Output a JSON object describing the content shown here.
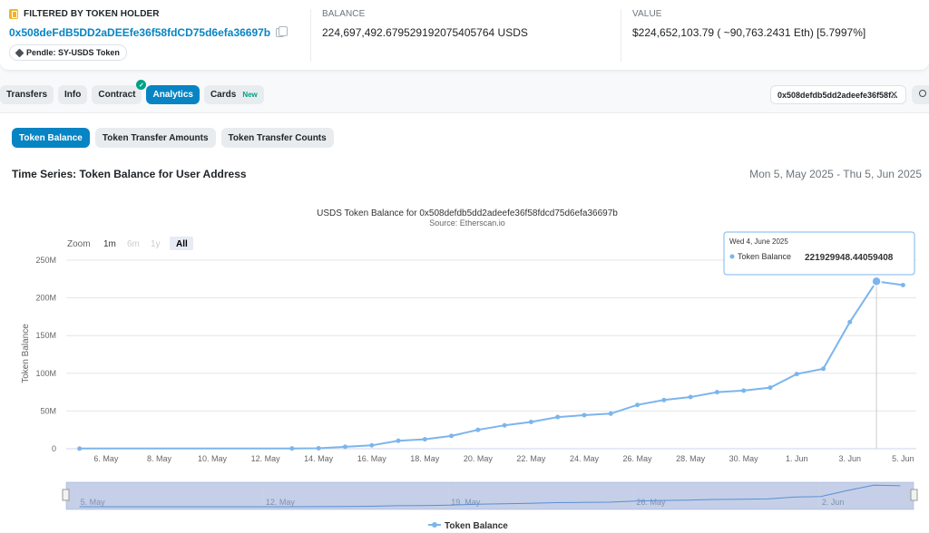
{
  "header": {
    "filter_label": "FILTERED BY TOKEN HOLDER",
    "holder_address": "0x508deFdB5DD2aDEEfe36f58fdCD75d6efa36697b",
    "token_pill": "Pendle: SY-USDS Token",
    "balance_label": "BALANCE",
    "balance_value": "224,697,492.679529192075405764 USDS",
    "value_label": "VALUE",
    "value_value": "$224,652,103.79 ( ~90,763.2431 Eth) [5.7997%]"
  },
  "tabs": [
    {
      "label": "Transfers"
    },
    {
      "label": "Info"
    },
    {
      "label": "Contract"
    },
    {
      "label": "Analytics",
      "active": true
    },
    {
      "label": "Cards",
      "badge": "New"
    }
  ],
  "address_filter": "0x508defdb5dd2adeefe36f58f...",
  "subtabs": [
    {
      "label": "Token Balance",
      "active": true
    },
    {
      "label": "Token Transfer Amounts"
    },
    {
      "label": "Token Transfer Counts"
    }
  ],
  "section_title": "Time Series: Token Balance for User Address",
  "date_range": "Mon 5, May 2025 - Thu 5, Jun 2025",
  "zoom": {
    "label": "Zoom",
    "options": [
      "1m",
      "6m",
      "1y",
      "All"
    ],
    "selected": "All"
  },
  "tooltip": {
    "date": "Wed 4, June 2025",
    "series": "Token Balance",
    "value": "221929948.44059408"
  },
  "colors": {
    "accent": "#0784c3",
    "series": "#7cb5ec",
    "success": "#00a186"
  },
  "chart_data": {
    "type": "line",
    "title": "USDS Token Balance for 0x508defdb5dd2adeefe36f58fdcd75d6efa36697b",
    "subtitle": "Source: Etherscan.io",
    "ylabel": "Token Balance",
    "ylim": [
      0,
      250000000
    ],
    "y_ticks": [
      "0",
      "50M",
      "100M",
      "150M",
      "200M",
      "250M"
    ],
    "y_tick_values": [
      0,
      50000000,
      100000000,
      150000000,
      200000000,
      250000000
    ],
    "x_ticks": [
      "6. May",
      "8. May",
      "10. May",
      "12. May",
      "14. May",
      "16. May",
      "18. May",
      "20. May",
      "22. May",
      "24. May",
      "26. May",
      "28. May",
      "30. May",
      "1. Jun",
      "3. Jun",
      "5. Jun"
    ],
    "navigator_ticks": [
      "5. May",
      "12. May",
      "19. May",
      "26. May",
      "2. Jun"
    ],
    "legend": "Token Balance",
    "series": [
      {
        "name": "Token Balance",
        "x": [
          "2025-05-05",
          "2025-05-13",
          "2025-05-14",
          "2025-05-15",
          "2025-05-16",
          "2025-05-17",
          "2025-05-18",
          "2025-05-19",
          "2025-05-20",
          "2025-05-21",
          "2025-05-22",
          "2025-05-23",
          "2025-05-24",
          "2025-05-25",
          "2025-05-26",
          "2025-05-27",
          "2025-05-28",
          "2025-05-29",
          "2025-05-30",
          "2025-05-31",
          "2025-06-01",
          "2025-06-02",
          "2025-06-03",
          "2025-06-04",
          "2025-06-05"
        ],
        "values": [
          200000,
          300000,
          600000,
          2500000,
          4500000,
          10500000,
          12500000,
          17000000,
          25000000,
          31000000,
          35500000,
          42000000,
          44500000,
          46500000,
          58000000,
          64500000,
          68500000,
          75000000,
          77000000,
          81000000,
          99000000,
          106000000,
          168000000,
          221929948.44,
          217000000
        ]
      }
    ]
  }
}
